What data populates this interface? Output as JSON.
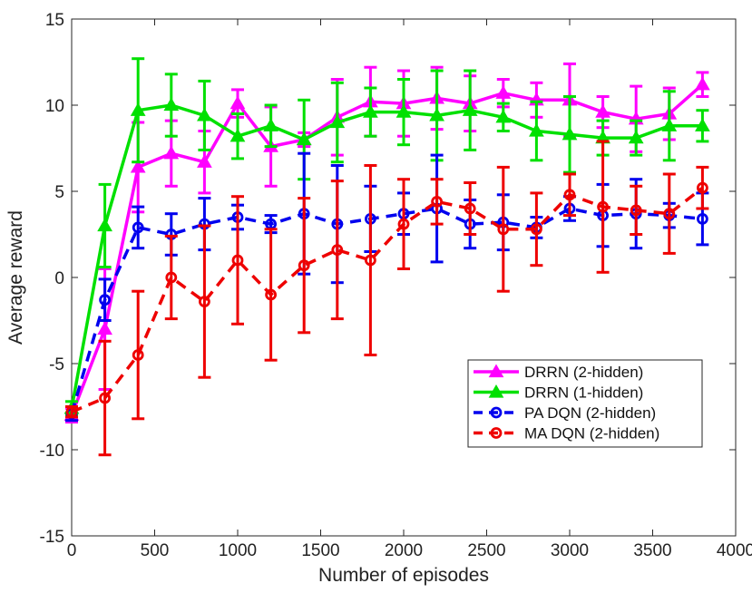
{
  "chart_data": {
    "type": "line",
    "title": "",
    "xlabel": "Number of episodes",
    "ylabel": "Average reward",
    "xlim": [
      0,
      4000
    ],
    "ylim": [
      -15,
      15
    ],
    "xticks": [
      0,
      500,
      1000,
      1500,
      2000,
      2500,
      3000,
      3500,
      4000
    ],
    "xtick_labels": [
      "0",
      "500",
      "1000",
      "1500",
      "2000",
      "2500",
      "3000",
      "3500",
      "4000"
    ],
    "yticks": [
      -15,
      -10,
      -5,
      0,
      5,
      10,
      15
    ],
    "ytick_labels": [
      "-15",
      "-10",
      "-5",
      "0",
      "5",
      "10",
      "15"
    ],
    "grid": false,
    "legend_position": "lower-right",
    "x": [
      0,
      200,
      400,
      600,
      800,
      1000,
      1200,
      1400,
      1600,
      1800,
      2000,
      2200,
      2400,
      2600,
      2800,
      3000,
      3200,
      3400,
      3600,
      3800
    ],
    "series": [
      {
        "name": "DRRN (2-hidden)",
        "color": "#ff00ff",
        "line_style": "solid",
        "marker": "triangle-up",
        "values": [
          -8.0,
          -3.0,
          6.4,
          7.2,
          6.7,
          10.1,
          7.6,
          8.0,
          9.3,
          10.2,
          10.1,
          10.4,
          10.1,
          10.7,
          10.3,
          10.3,
          9.6,
          9.2,
          9.5,
          11.2
        ],
        "errors": [
          0.4,
          3.5,
          2.6,
          1.9,
          1.8,
          0.8,
          2.3,
          0.4,
          2.2,
          2.0,
          1.9,
          1.8,
          1.6,
          0.8,
          1.0,
          2.1,
          0.9,
          1.9,
          1.5,
          0.7
        ]
      },
      {
        "name": "DRRN (1-hidden)",
        "color": "#00e000",
        "line_style": "solid",
        "marker": "triangle-up",
        "values": [
          -7.6,
          3.0,
          9.7,
          10.0,
          9.4,
          8.2,
          8.8,
          8.0,
          9.0,
          9.6,
          9.6,
          9.4,
          9.7,
          9.3,
          8.5,
          8.3,
          8.1,
          8.1,
          8.8,
          8.8
        ],
        "errors": [
          0.4,
          2.4,
          3.0,
          1.8,
          2.0,
          1.3,
          1.2,
          2.3,
          2.3,
          1.4,
          1.9,
          2.6,
          2.3,
          0.8,
          1.7,
          2.2,
          1.0,
          1.0,
          2.0,
          0.9
        ]
      },
      {
        "name": "PA DQN (2-hidden)",
        "color": "#0000ee",
        "line_style": "dashed",
        "marker": "circle",
        "values": [
          -7.9,
          -1.3,
          2.9,
          2.5,
          3.1,
          3.5,
          3.1,
          3.7,
          3.1,
          3.4,
          3.7,
          4.0,
          3.1,
          3.2,
          2.9,
          4.0,
          3.6,
          3.7,
          3.6,
          3.4
        ],
        "errors": [
          0.4,
          1.2,
          1.2,
          1.2,
          1.5,
          0.7,
          0.5,
          3.5,
          3.4,
          1.9,
          1.2,
          3.1,
          1.4,
          1.6,
          0.6,
          0.7,
          1.8,
          2.0,
          0.7,
          1.5
        ]
      },
      {
        "name": "MA DQN (2-hidden)",
        "color": "#ee0000",
        "line_style": "dashed",
        "marker": "circle",
        "values": [
          -7.8,
          -7.0,
          -4.5,
          0.0,
          -1.4,
          1.0,
          -1.0,
          0.7,
          1.6,
          1.0,
          3.1,
          4.4,
          4.0,
          2.8,
          2.8,
          4.8,
          4.1,
          3.9,
          3.7,
          5.2
        ],
        "errors": [
          0.3,
          3.3,
          3.7,
          2.4,
          4.4,
          3.7,
          3.8,
          3.9,
          4.0,
          5.5,
          2.6,
          1.3,
          1.5,
          3.6,
          2.1,
          1.2,
          3.8,
          1.4,
          2.3,
          1.2
        ]
      }
    ]
  }
}
